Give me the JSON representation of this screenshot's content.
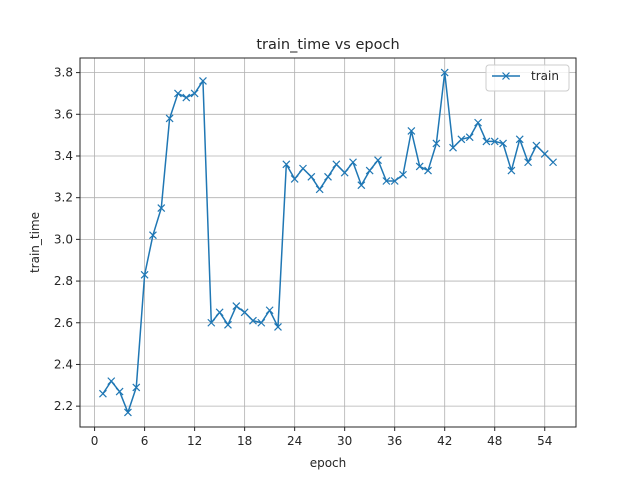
{
  "chart_data": {
    "type": "line",
    "title": "train_time vs epoch",
    "xlabel": "epoch",
    "ylabel": "train_time",
    "xlim": [
      -1.75,
      57.75
    ],
    "ylim": [
      2.1,
      3.87
    ],
    "xticks": [
      0,
      6,
      12,
      18,
      24,
      30,
      36,
      42,
      48,
      54
    ],
    "xtick_labels": [
      "0",
      "6",
      "12",
      "18",
      "24",
      "30",
      "36",
      "42",
      "48",
      "54"
    ],
    "yticks": [
      2.2,
      2.4,
      2.6,
      2.8,
      3.0,
      3.2,
      3.4,
      3.6,
      3.8
    ],
    "ytick_labels": [
      "2.2",
      "2.4",
      "2.6",
      "2.8",
      "3.0",
      "3.2",
      "3.4",
      "3.6",
      "3.8"
    ],
    "grid": true,
    "legend": {
      "position": "top-right"
    },
    "marker": "x",
    "series": [
      {
        "name": "train",
        "color": "#1f77b4",
        "x": [
          1,
          2,
          3,
          4,
          5,
          6,
          7,
          8,
          9,
          10,
          11,
          12,
          13,
          14,
          15,
          16,
          17,
          18,
          19,
          20,
          21,
          22,
          23,
          24,
          25,
          26,
          27,
          28,
          29,
          30,
          31,
          32,
          33,
          34,
          35,
          36,
          37,
          38,
          39,
          40,
          41,
          42,
          43,
          44,
          45,
          46,
          47,
          48,
          49,
          50,
          51,
          52,
          53,
          54,
          55
        ],
        "y": [
          2.26,
          2.32,
          2.27,
          2.17,
          2.29,
          2.83,
          3.02,
          3.15,
          3.58,
          3.7,
          3.68,
          3.7,
          3.76,
          2.6,
          2.65,
          2.59,
          2.68,
          2.65,
          2.61,
          2.6,
          2.66,
          2.58,
          3.36,
          3.29,
          3.34,
          3.3,
          3.24,
          3.3,
          3.36,
          3.32,
          3.37,
          3.26,
          3.33,
          3.38,
          3.28,
          3.28,
          3.31,
          3.52,
          3.35,
          3.33,
          3.46,
          3.8,
          3.44,
          3.48,
          3.49,
          3.56,
          3.47,
          3.47,
          3.46,
          3.33,
          3.48,
          3.37,
          3.45,
          3.41,
          3.37
        ]
      }
    ]
  }
}
